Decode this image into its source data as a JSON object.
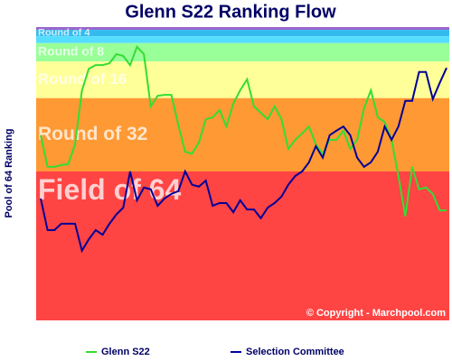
{
  "chart_data": {
    "type": "line",
    "title": "Glenn S22 Ranking Flow",
    "y_label": "Pool of 64 Ranking",
    "copyright": "© Copyright - Marchpool.com",
    "y_inverted": true,
    "ylim": [
      0,
      64
    ],
    "xlim": [
      1,
      60
    ],
    "x": [
      1,
      2,
      3,
      4,
      5,
      6,
      7,
      8,
      9,
      10,
      11,
      12,
      13,
      14,
      15,
      16,
      17,
      18,
      19,
      20,
      21,
      22,
      23,
      24,
      25,
      26,
      27,
      28,
      29,
      30,
      31,
      32,
      33,
      34,
      35,
      36,
      37,
      38,
      39,
      40,
      41,
      42,
      43,
      44,
      45,
      46,
      47,
      48,
      49,
      50,
      51,
      52,
      53,
      54,
      55,
      56,
      57,
      58,
      59,
      60
    ],
    "bands": [
      {
        "from": 0,
        "to": 0.6,
        "color": "#9966cc"
      },
      {
        "from": 0.6,
        "to": 2,
        "color": "#33bbee",
        "label": "Round of 4",
        "size": 11
      },
      {
        "from": 2,
        "to": 3.5,
        "color": "#55ddff"
      },
      {
        "from": 3.5,
        "to": 7.5,
        "color": "#99ff99",
        "label": "Round of 8",
        "size": 14
      },
      {
        "from": 7.5,
        "to": 15.5,
        "color": "#ffff99",
        "label": "Round of 16",
        "size": 17
      },
      {
        "from": 15.5,
        "to": 31.5,
        "color": "#ff9933",
        "label": "Round of 32",
        "size": 21
      },
      {
        "from": 31.5,
        "to": 64,
        "color": "#ff4444",
        "label": "Field of 64",
        "size": 32
      }
    ],
    "series": [
      {
        "name": "Glenn S22",
        "color": "#33dd33",
        "values": [
          23.6,
          30.5,
          30.5,
          30.1,
          29.9,
          25.6,
          13.8,
          9.1,
          8.3,
          8.3,
          7.9,
          5.9,
          6.3,
          8.3,
          4.3,
          5.9,
          17.3,
          15,
          14.8,
          14.8,
          21.3,
          27.2,
          27.6,
          25.2,
          20.1,
          19.7,
          18.1,
          21.7,
          16.7,
          13.8,
          11.4,
          17.3,
          18.7,
          20.1,
          17.3,
          20.1,
          26.6,
          24.6,
          23.2,
          21.7,
          25.6,
          27.6,
          24.6,
          24.6,
          22.6,
          26.6,
          24.6,
          17.7,
          13.8,
          19.7,
          20.7,
          24.6,
          32.5,
          41.3,
          30.5,
          35.4,
          35,
          36.4,
          40,
          40
        ]
      },
      {
        "name": "Selection Committee",
        "color": "#000099",
        "values": [
          37.4,
          44.3,
          44.3,
          42.9,
          42.9,
          42.9,
          48.8,
          46.3,
          44.3,
          45.3,
          42.9,
          40.9,
          39.4,
          31.5,
          37.8,
          35,
          35.4,
          39,
          37.4,
          36.4,
          35.8,
          31.5,
          34.4,
          34.8,
          33.5,
          39,
          38.4,
          38.4,
          40.4,
          37.8,
          39.8,
          39.8,
          41.7,
          39.4,
          38.4,
          37,
          34.4,
          32.5,
          31.5,
          29.5,
          26,
          28.5,
          23.6,
          22.6,
          21.7,
          23.6,
          28.5,
          30.5,
          29.5,
          27.2,
          21.7,
          24.6,
          21.7,
          16.1,
          16.1,
          9.8,
          9.8,
          15.7,
          12.2,
          8.9
        ]
      }
    ]
  }
}
